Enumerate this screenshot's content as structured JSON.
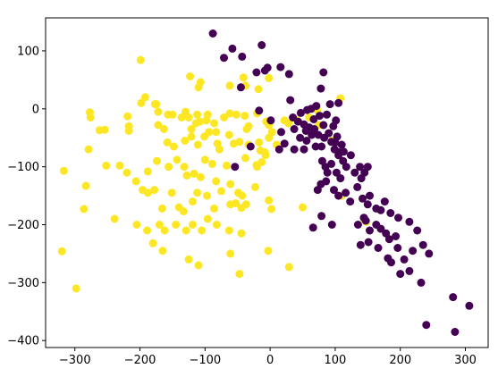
{
  "chart_data": {
    "type": "scatter",
    "title": "",
    "xlabel": "",
    "ylabel": "",
    "xlim": [
      -345,
      335
    ],
    "ylim": [
      -412,
      157
    ],
    "xticks": [
      -300,
      -200,
      -100,
      0,
      100,
      200,
      300
    ],
    "yticks": [
      -400,
      -300,
      -200,
      -100,
      0,
      100
    ],
    "grid": false,
    "legend": "none",
    "series": [
      {
        "color": "#fde725",
        "points": [
          [
            -199,
            84
          ],
          [
            -198,
            10
          ],
          [
            -192,
            20
          ],
          [
            -123,
            56
          ],
          [
            -110,
            37
          ],
          [
            -107,
            46
          ],
          [
            -62,
            40
          ],
          [
            -41,
            54
          ],
          [
            -38,
            40
          ],
          [
            -18,
            34
          ],
          [
            -2,
            53
          ],
          [
            108,
            18
          ],
          [
            -277,
            -6
          ],
          [
            -276,
            -15
          ],
          [
            -262,
            -37
          ],
          [
            -254,
            -36
          ],
          [
            -219,
            -13
          ],
          [
            -217,
            -30
          ],
          [
            -217,
            -38
          ],
          [
            -177,
            8
          ],
          [
            -175,
            8
          ],
          [
            -172,
            -5
          ],
          [
            -157,
            -10
          ],
          [
            -150,
            -10
          ],
          [
            -136,
            -15
          ],
          [
            -130,
            -5
          ],
          [
            -125,
            -15
          ],
          [
            -121,
            -35
          ],
          [
            -114,
            -25
          ],
          [
            -112,
            -10
          ],
          [
            -108,
            -22
          ],
          [
            -98,
            -20
          ],
          [
            -96,
            -10
          ],
          [
            -86,
            -25
          ],
          [
            -83,
            -40
          ],
          [
            -71,
            -15
          ],
          [
            -62,
            -8
          ],
          [
            -52,
            -10
          ],
          [
            -39,
            -12
          ],
          [
            -36,
            -35
          ],
          [
            -33,
            -30
          ],
          [
            -20,
            -8
          ],
          [
            -6,
            -22
          ],
          [
            -2,
            -28
          ],
          [
            3,
            -40
          ],
          [
            22,
            -20
          ],
          [
            28,
            -25
          ],
          [
            75,
            -28
          ],
          [
            -172,
            -28
          ],
          [
            -163,
            -35
          ],
          [
            -158,
            -58
          ],
          [
            -148,
            -65
          ],
          [
            -131,
            -55
          ],
          [
            -121,
            -48
          ],
          [
            -111,
            -62
          ],
          [
            -101,
            -48
          ],
          [
            -94,
            -40
          ],
          [
            -81,
            -60
          ],
          [
            -78,
            -70
          ],
          [
            -63,
            -45
          ],
          [
            -56,
            -60
          ],
          [
            -47,
            -57
          ],
          [
            -33,
            -62
          ],
          [
            -17,
            -58
          ],
          [
            -15,
            -72
          ],
          [
            -7,
            -80
          ],
          [
            -2,
            -50
          ],
          [
            10,
            -62
          ],
          [
            -279,
            -70
          ],
          [
            -252,
            -98
          ],
          [
            -231,
            -98
          ],
          [
            -220,
            -110
          ],
          [
            -206,
            -125
          ],
          [
            -196,
            -140
          ],
          [
            -188,
            -108
          ],
          [
            -174,
            -90
          ],
          [
            -156,
            -100
          ],
          [
            -143,
            -88
          ],
          [
            -132,
            -100
          ],
          [
            -128,
            -115
          ],
          [
            -117,
            -112
          ],
          [
            -107,
            -118
          ],
          [
            -100,
            -88
          ],
          [
            -89,
            -95
          ],
          [
            -83,
            -125
          ],
          [
            -67,
            -98
          ],
          [
            -61,
            -130
          ],
          [
            -49,
            -145
          ],
          [
            -38,
            -85
          ],
          [
            -21,
            -97
          ],
          [
            -13,
            -92
          ],
          [
            -8,
            -75
          ],
          [
            -317,
            -107
          ],
          [
            -286,
            -173
          ],
          [
            -283,
            -133
          ],
          [
            -188,
            -145
          ],
          [
            -178,
            -140
          ],
          [
            -166,
            -172
          ],
          [
            -151,
            -145
          ],
          [
            -140,
            -170
          ],
          [
            -133,
            -177
          ],
          [
            -119,
            -160
          ],
          [
            -112,
            -145
          ],
          [
            -97,
            -150
          ],
          [
            -86,
            -172
          ],
          [
            -75,
            -142
          ],
          [
            -61,
            -165
          ],
          [
            -53,
            -163
          ],
          [
            -43,
            -150
          ],
          [
            -37,
            -165
          ],
          [
            -23,
            -135
          ],
          [
            -2,
            -158
          ],
          [
            2,
            -173
          ],
          [
            110,
            -150
          ],
          [
            146,
            -193
          ],
          [
            -239,
            -190
          ],
          [
            -205,
            -200
          ],
          [
            -189,
            -210
          ],
          [
            -170,
            -200
          ],
          [
            -162,
            -210
          ],
          [
            -145,
            -200
          ],
          [
            -129,
            -210
          ],
          [
            -119,
            -200
          ],
          [
            -105,
            -210
          ],
          [
            -96,
            -190
          ],
          [
            -82,
            -200
          ],
          [
            -63,
            -210
          ],
          [
            -44,
            -215
          ],
          [
            -3,
            -245
          ],
          [
            -180,
            -232
          ],
          [
            -165,
            -245
          ],
          [
            -125,
            -260
          ],
          [
            -110,
            -270
          ],
          [
            -61,
            -250
          ],
          [
            -47,
            -285
          ],
          [
            29,
            -273
          ],
          [
            -320,
            -246
          ],
          [
            -298,
            -310
          ],
          [
            72,
            -2
          ],
          [
            60,
            -15
          ],
          [
            95,
            -55
          ],
          [
            -20,
            -100
          ],
          [
            -44,
            -171
          ],
          [
            50,
            -170
          ],
          [
            148,
            -195
          ],
          [
            42,
            -20
          ]
        ]
      },
      {
        "color": "#440154",
        "points": [
          [
            -88,
            130
          ],
          [
            -71,
            88
          ],
          [
            -58,
            104
          ],
          [
            -43,
            90
          ],
          [
            -13,
            110
          ],
          [
            -21,
            63
          ],
          [
            -8,
            66
          ],
          [
            -4,
            71
          ],
          [
            16,
            72
          ],
          [
            29,
            60
          ],
          [
            82,
            63
          ],
          [
            -45,
            37
          ],
          [
            -17,
            -3
          ],
          [
            1,
            -20
          ],
          [
            17,
            -40
          ],
          [
            31,
            15
          ],
          [
            35,
            -15
          ],
          [
            37,
            -35
          ],
          [
            43,
            -22
          ],
          [
            47,
            -7
          ],
          [
            52,
            -27
          ],
          [
            57,
            -2
          ],
          [
            60,
            -32
          ],
          [
            63,
            0
          ],
          [
            67,
            -18
          ],
          [
            68,
            -35
          ],
          [
            71,
            5
          ],
          [
            74,
            -45
          ],
          [
            76,
            -12
          ],
          [
            79,
            -65
          ],
          [
            82,
            -28
          ],
          [
            83,
            -50
          ],
          [
            87,
            -10
          ],
          [
            90,
            -42
          ],
          [
            92,
            8
          ],
          [
            94,
            -57
          ],
          [
            97,
            -30
          ],
          [
            99,
            -70
          ],
          [
            100,
            -58
          ],
          [
            101,
            -20
          ],
          [
            103,
            -48
          ],
          [
            105,
            -80
          ],
          [
            105,
            10
          ],
          [
            110,
            -62
          ],
          [
            113,
            -74
          ],
          [
            78,
            35
          ],
          [
            -54,
            -100
          ],
          [
            -30,
            -65
          ],
          [
            14,
            -70
          ],
          [
            22,
            -60
          ],
          [
            37,
            -70
          ],
          [
            46,
            -50
          ],
          [
            52,
            -70
          ],
          [
            55,
            -38
          ],
          [
            64,
            -45
          ],
          [
            70,
            -65
          ],
          [
            56,
            -55
          ],
          [
            80,
            -90
          ],
          [
            85,
            -100
          ],
          [
            88,
            -110
          ],
          [
            94,
            -95
          ],
          [
            102,
            -110
          ],
          [
            108,
            -120
          ],
          [
            112,
            -90
          ],
          [
            117,
            -100
          ],
          [
            124,
            -80
          ],
          [
            130,
            -110
          ],
          [
            138,
            -100
          ],
          [
            140,
            -120
          ],
          [
            145,
            -110
          ],
          [
            150,
            -100
          ],
          [
            106,
            -75
          ],
          [
            73,
            -140
          ],
          [
            78,
            -130
          ],
          [
            86,
            -125
          ],
          [
            98,
            -140
          ],
          [
            105,
            -150
          ],
          [
            116,
            -145
          ],
          [
            123,
            -160
          ],
          [
            134,
            -135
          ],
          [
            142,
            -155
          ],
          [
            150,
            -165
          ],
          [
            153,
            -150
          ],
          [
            163,
            -172
          ],
          [
            170,
            -175
          ],
          [
            176,
            -160
          ],
          [
            185,
            -180
          ],
          [
            197,
            -188
          ],
          [
            79,
            -185
          ],
          [
            95,
            -200
          ],
          [
            135,
            -200
          ],
          [
            144,
            -188
          ],
          [
            153,
            -210
          ],
          [
            163,
            -200
          ],
          [
            170,
            -207
          ],
          [
            178,
            -215
          ],
          [
            183,
            -225
          ],
          [
            193,
            -220
          ],
          [
            214,
            -195
          ],
          [
            226,
            -210
          ],
          [
            66,
            -205
          ],
          [
            139,
            -235
          ],
          [
            151,
            -230
          ],
          [
            166,
            -240
          ],
          [
            181,
            -258
          ],
          [
            196,
            -240
          ],
          [
            206,
            -260
          ],
          [
            214,
            -280
          ],
          [
            219,
            -245
          ],
          [
            235,
            -235
          ],
          [
            244,
            -250
          ],
          [
            186,
            -265
          ],
          [
            200,
            -285
          ],
          [
            232,
            -300
          ],
          [
            281,
            -325
          ],
          [
            306,
            -340
          ],
          [
            240,
            -373
          ],
          [
            284,
            -385
          ],
          [
            147,
            -193
          ]
        ]
      }
    ]
  }
}
